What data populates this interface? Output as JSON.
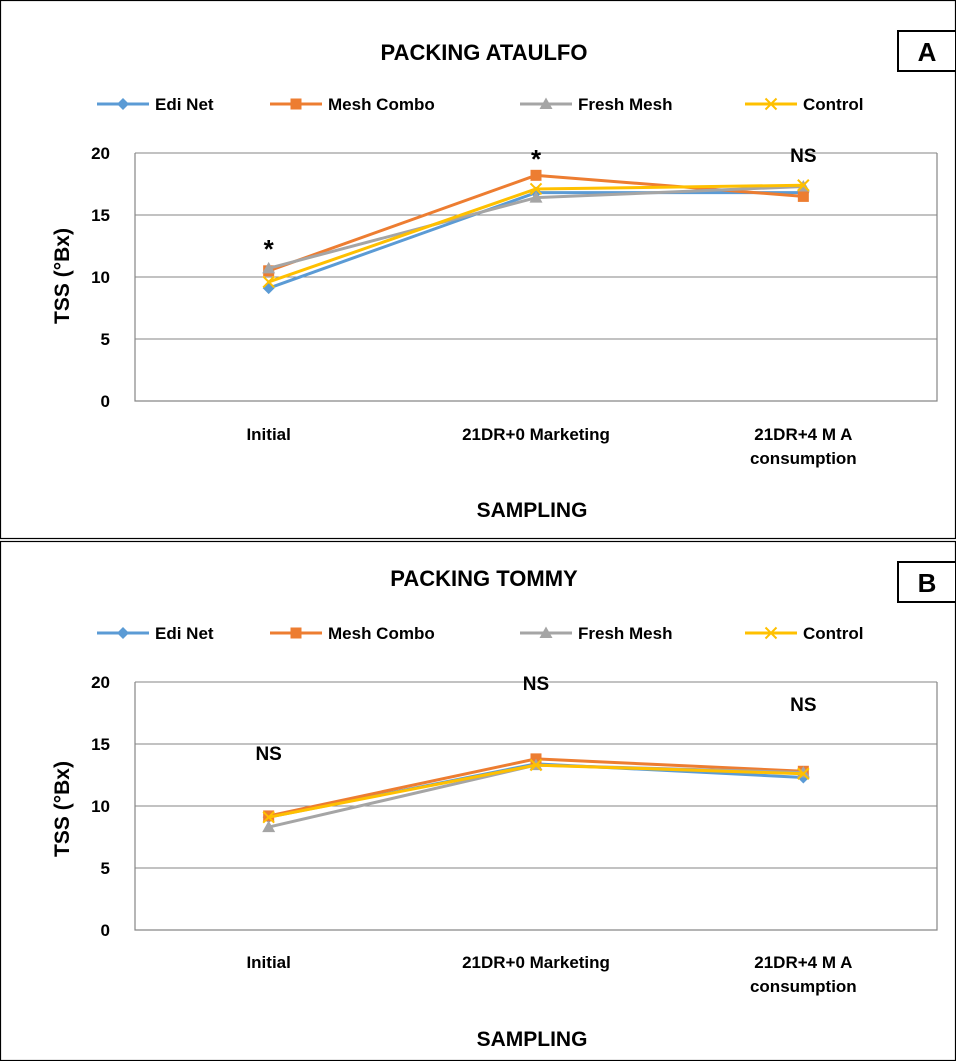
{
  "series_styles": [
    {
      "name": "Edi Net",
      "color": "#5B9BD5",
      "marker": "diamond"
    },
    {
      "name": "Mesh Combo",
      "color": "#ED7D31",
      "marker": "square"
    },
    {
      "name": "Fresh Mesh",
      "color": "#A5A5A5",
      "marker": "triangle"
    },
    {
      "name": "Control",
      "color": "#FFC000",
      "marker": "x"
    }
  ],
  "chart_data": [
    {
      "type": "line",
      "title": "PACKING ATAULFO",
      "panel": "A",
      "xlabel": "SAMPLING",
      "ylabel": "TSS (°Bx)",
      "ylim": [
        0,
        20
      ],
      "yticks": [
        "0",
        "5",
        "10",
        "15",
        "20"
      ],
      "categories": [
        [
          "Initial"
        ],
        [
          "21DR+0 Marketing"
        ],
        [
          "21DR+4 M  A",
          "consumption"
        ]
      ],
      "series": [
        {
          "name": "Edi Net",
          "values": [
            9.1,
            16.8,
            16.8
          ]
        },
        {
          "name": "Mesh Combo",
          "values": [
            10.5,
            18.2,
            16.5
          ]
        },
        {
          "name": "Fresh Mesh",
          "values": [
            10.7,
            16.4,
            17.3
          ]
        },
        {
          "name": "Control",
          "values": [
            9.6,
            17.1,
            17.4
          ]
        }
      ],
      "annotations": [
        "*",
        "*",
        "NS"
      ],
      "grid": true,
      "legend": "top"
    },
    {
      "type": "line",
      "title": "PACKING TOMMY",
      "panel": "B",
      "xlabel": "SAMPLING",
      "ylabel": "TSS (°Bx)",
      "ylim": [
        0,
        20
      ],
      "yticks": [
        "0",
        "5",
        "10",
        "15",
        "20"
      ],
      "categories": [
        [
          "Initial"
        ],
        [
          "21DR+0 Marketing"
        ],
        [
          "21DR+4 M  A",
          "consumption"
        ]
      ],
      "series": [
        {
          "name": "Edi Net",
          "values": [
            9.1,
            13.4,
            12.3
          ]
        },
        {
          "name": "Mesh Combo",
          "values": [
            9.2,
            13.8,
            12.8
          ]
        },
        {
          "name": "Fresh Mesh",
          "values": [
            8.3,
            13.3,
            12.7
          ]
        },
        {
          "name": "Control",
          "values": [
            9.1,
            13.3,
            12.6
          ]
        }
      ],
      "annotations": [
        "NS",
        "NS",
        "NS"
      ],
      "grid": true,
      "legend": "top"
    }
  ]
}
